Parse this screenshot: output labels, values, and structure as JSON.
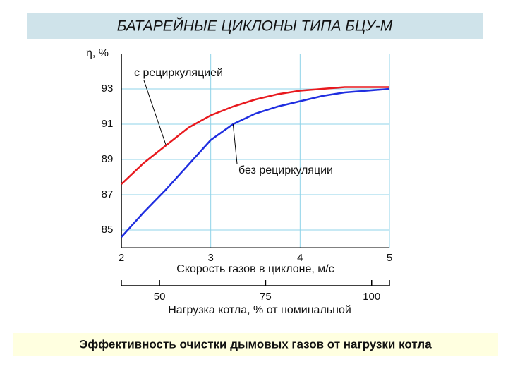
{
  "chart_data": {
    "type": "line",
    "title": "БАТАРЕЙНЫЕ ЦИКЛОНЫ ТИПА БЦУ-М",
    "caption": "Эффективность очистки дымовых газов от нагрузки котла",
    "y_label": "η, %",
    "x_label": "Скорость газов в циклоне, м/с",
    "x2_label": "Нагрузка котла, % от номинальной",
    "x": [
      2,
      2.25,
      2.5,
      2.75,
      3,
      3.25,
      3.5,
      3.75,
      4,
      4.25,
      4.5,
      4.75,
      5
    ],
    "series": [
      {
        "name": "с рециркуляцией",
        "color": "#e8191e",
        "values": [
          87.6,
          88.8,
          89.8,
          90.8,
          91.5,
          92.0,
          92.4,
          92.7,
          92.9,
          93.0,
          93.1,
          93.1,
          93.1
        ]
      },
      {
        "name": "без рециркуляции",
        "color": "#1f2ee0",
        "values": [
          84.6,
          86.0,
          87.3,
          88.7,
          90.1,
          91.0,
          91.6,
          92.0,
          92.3,
          92.6,
          92.8,
          92.9,
          93.0
        ]
      }
    ],
    "xlim": [
      2,
      5
    ],
    "xticks": [
      2,
      3,
      4,
      5
    ],
    "ylim": [
      84,
      95
    ],
    "yticks": [
      85,
      87,
      89,
      91,
      93
    ],
    "x2lim": [
      41,
      104.2
    ],
    "x2ticks": [
      50,
      75,
      100
    ],
    "grid": true
  }
}
